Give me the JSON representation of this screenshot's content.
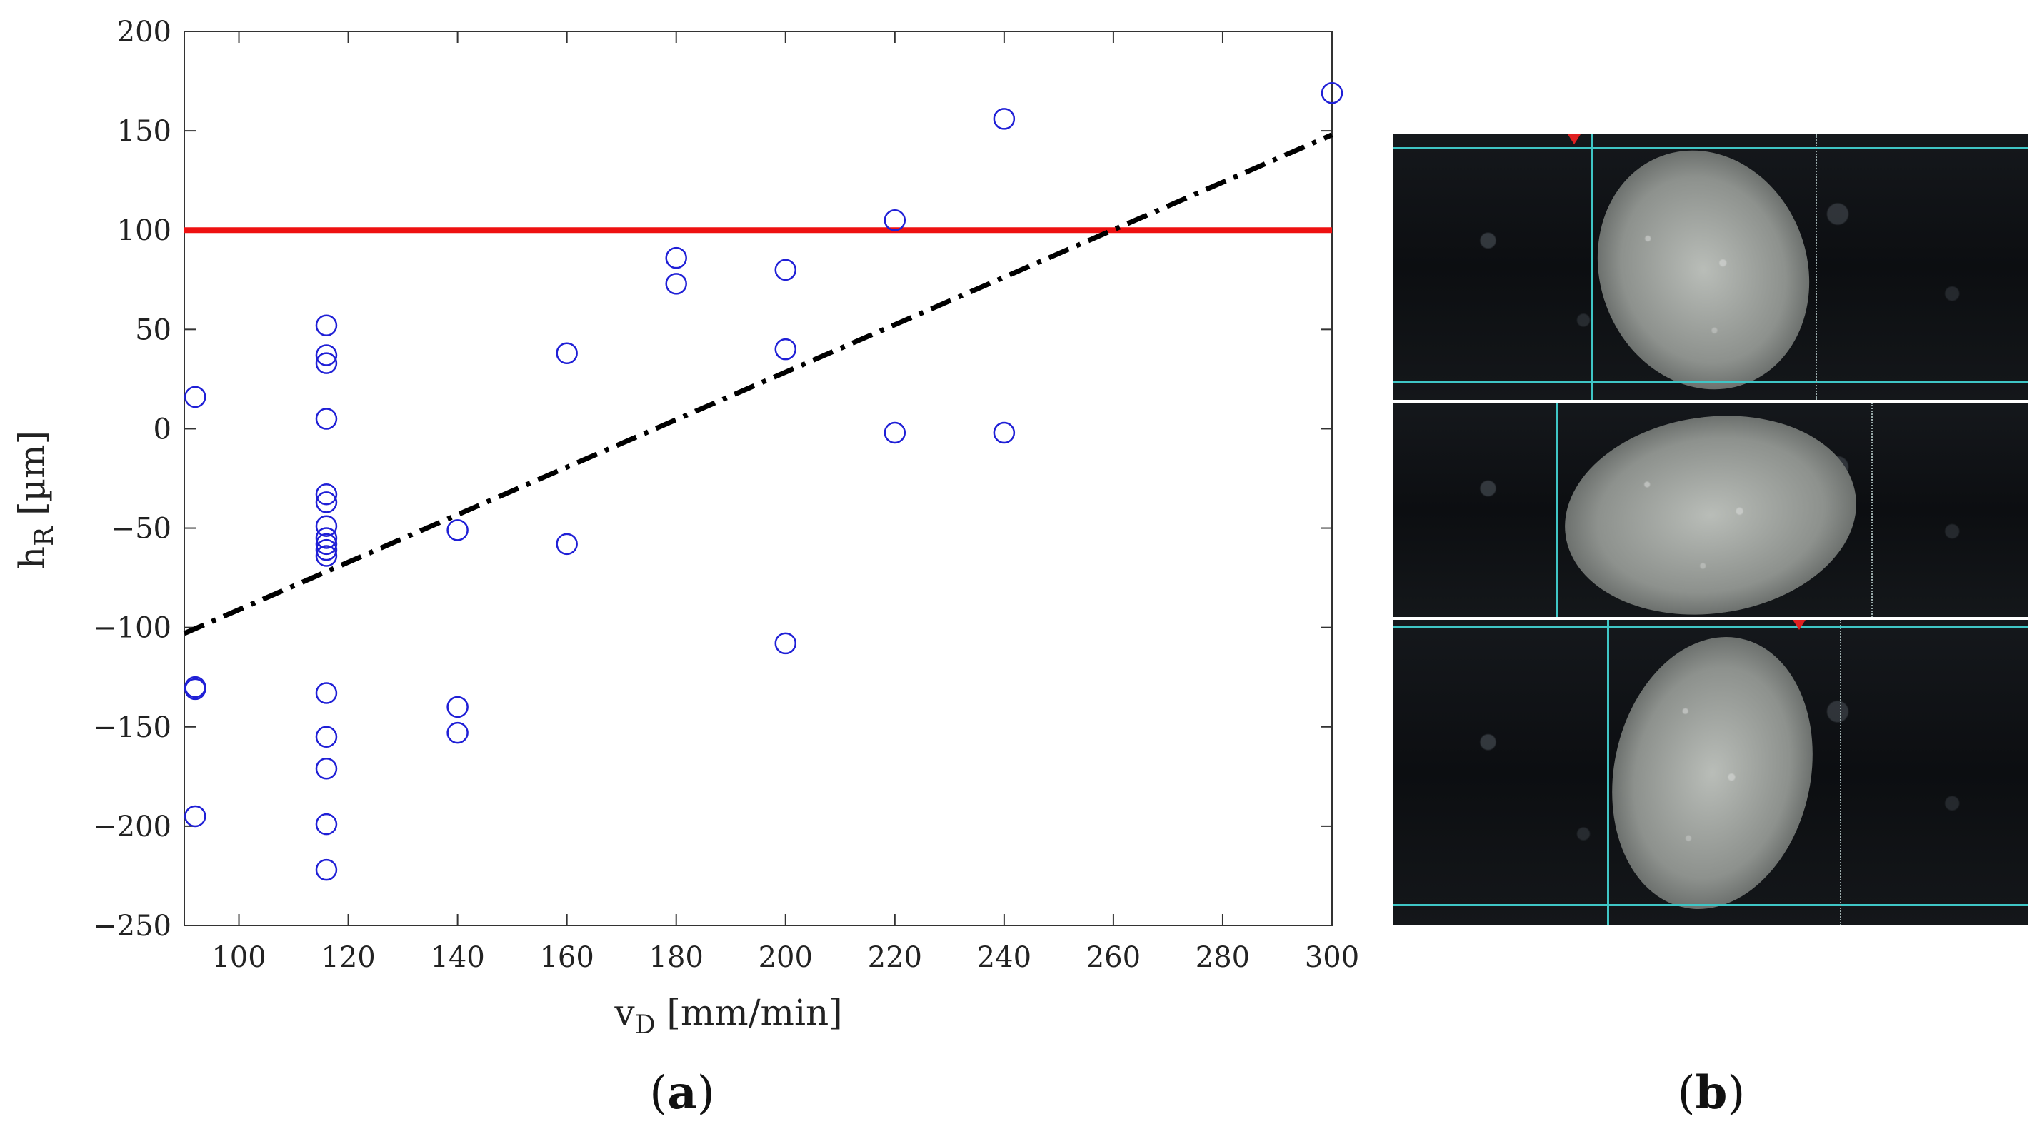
{
  "chart_data": {
    "type": "scatter",
    "xlabel_main": "v",
    "xlabel_sub": "D",
    "xlabel_unit": " [mm/min]",
    "ylabel_main": "h",
    "ylabel_sub": "R",
    "ylabel_unit": " [µm]",
    "xlim": [
      90,
      300
    ],
    "ylim": [
      -250,
      200
    ],
    "xticks": [
      100,
      120,
      140,
      160,
      180,
      200,
      220,
      240,
      260,
      280,
      300
    ],
    "yticks": [
      -250,
      -200,
      -150,
      -100,
      -50,
      0,
      50,
      100,
      150,
      200
    ],
    "ytick_labels": [
      "−250",
      "−200",
      "−150",
      "−100",
      "−50",
      "0",
      "50",
      "100",
      "150",
      "200"
    ],
    "points": [
      {
        "x": 92,
        "y": 16
      },
      {
        "x": 92,
        "y": -130
      },
      {
        "x": 92,
        "y": -131
      },
      {
        "x": 92,
        "y": -195
      },
      {
        "x": 116,
        "y": 52
      },
      {
        "x": 116,
        "y": 37
      },
      {
        "x": 116,
        "y": 33
      },
      {
        "x": 116,
        "y": 5
      },
      {
        "x": 116,
        "y": -33
      },
      {
        "x": 116,
        "y": -37
      },
      {
        "x": 116,
        "y": -49
      },
      {
        "x": 116,
        "y": -55
      },
      {
        "x": 116,
        "y": -58
      },
      {
        "x": 116,
        "y": -61
      },
      {
        "x": 116,
        "y": -64
      },
      {
        "x": 116,
        "y": -133
      },
      {
        "x": 116,
        "y": -155
      },
      {
        "x": 116,
        "y": -171
      },
      {
        "x": 116,
        "y": -199
      },
      {
        "x": 116,
        "y": -222
      },
      {
        "x": 140,
        "y": -51
      },
      {
        "x": 140,
        "y": -140
      },
      {
        "x": 140,
        "y": -153
      },
      {
        "x": 160,
        "y": 38
      },
      {
        "x": 160,
        "y": -58
      },
      {
        "x": 180,
        "y": 86
      },
      {
        "x": 180,
        "y": 73
      },
      {
        "x": 200,
        "y": 80
      },
      {
        "x": 200,
        "y": 40
      },
      {
        "x": 200,
        "y": -108
      },
      {
        "x": 220,
        "y": 105
      },
      {
        "x": 220,
        "y": -2
      },
      {
        "x": 240,
        "y": 156
      },
      {
        "x": 240,
        "y": -2
      },
      {
        "x": 300,
        "y": 169
      }
    ],
    "threshold_line": {
      "y": 100,
      "color": "#ee1111"
    },
    "trend_line": {
      "x": [
        90,
        300
      ],
      "y": [
        -103,
        148
      ],
      "color": "#000000",
      "style": "dash-dot"
    },
    "marker_color": "#1f1fd6"
  },
  "panels": {
    "a_label": "a",
    "b_label": "b"
  },
  "photo": {
    "description_tags": [
      "micrograph-top",
      "micrograph-middle",
      "micrograph-bottom"
    ],
    "grid_color": "#3fc6c6"
  }
}
